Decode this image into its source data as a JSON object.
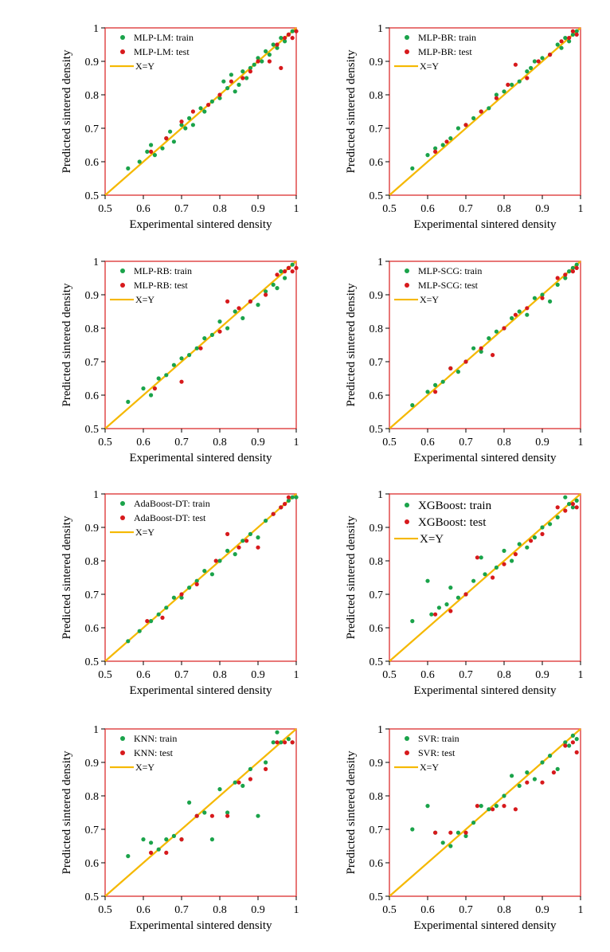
{
  "colors": {
    "train": "#1aa34a",
    "test": "#d7191c",
    "identity": "#f5b800",
    "frame": "#e04a4a"
  },
  "chart_data": [
    {
      "type": "scatter",
      "xlabel": "Experimental sintered density",
      "ylabel": "Predicted sintered density",
      "xlim": [
        0.5,
        1
      ],
      "ylim": [
        0.5,
        1
      ],
      "xticks": [
        "0.5",
        "0.6",
        "0.7",
        "0.8",
        "0.9",
        "1"
      ],
      "yticks": [
        "0.5",
        "0.6",
        "0.7",
        "0.8",
        "0.9",
        "1"
      ],
      "legend": [
        "MLP-LM: train",
        "MLP-LM: test",
        "X=Y"
      ],
      "legend_position": "top-left",
      "series": [
        {
          "name": "MLP-LM: train",
          "x": [
            0.56,
            0.59,
            0.61,
            0.62,
            0.63,
            0.65,
            0.66,
            0.67,
            0.68,
            0.7,
            0.71,
            0.72,
            0.73,
            0.75,
            0.76,
            0.78,
            0.8,
            0.81,
            0.82,
            0.83,
            0.84,
            0.85,
            0.86,
            0.87,
            0.88,
            0.89,
            0.9,
            0.91,
            0.92,
            0.93,
            0.94,
            0.95,
            0.96,
            0.97,
            0.98,
            0.99
          ],
          "y": [
            0.58,
            0.6,
            0.63,
            0.65,
            0.62,
            0.64,
            0.67,
            0.69,
            0.66,
            0.71,
            0.7,
            0.73,
            0.71,
            0.76,
            0.75,
            0.78,
            0.79,
            0.84,
            0.82,
            0.86,
            0.81,
            0.83,
            0.87,
            0.85,
            0.88,
            0.89,
            0.91,
            0.9,
            0.93,
            0.92,
            0.95,
            0.94,
            0.97,
            0.96,
            0.98,
            0.99
          ]
        },
        {
          "name": "MLP-LM: test",
          "x": [
            0.62,
            0.66,
            0.7,
            0.73,
            0.77,
            0.8,
            0.83,
            0.86,
            0.88,
            0.9,
            0.93,
            0.95,
            0.96,
            0.97,
            0.98,
            0.99,
            1.0
          ],
          "y": [
            0.63,
            0.67,
            0.72,
            0.75,
            0.77,
            0.8,
            0.84,
            0.85,
            0.87,
            0.9,
            0.9,
            0.95,
            0.88,
            0.97,
            0.98,
            0.97,
            0.99
          ]
        }
      ]
    },
    {
      "type": "scatter",
      "xlabel": "Experimental sintered density",
      "ylabel": "Predicted sintered density",
      "xlim": [
        0.5,
        1
      ],
      "ylim": [
        0.5,
        1
      ],
      "xticks": [
        "0.5",
        "0.6",
        "0.7",
        "0.8",
        "0.9",
        "1"
      ],
      "yticks": [
        "0.5",
        "0.6",
        "0.7",
        "0.8",
        "0.9",
        "1"
      ],
      "legend": [
        "MLP-BR: train",
        "MLP-BR: test",
        "X=Y"
      ],
      "legend_position": "top-left",
      "series": [
        {
          "name": "MLP-BR: train",
          "x": [
            0.56,
            0.6,
            0.62,
            0.64,
            0.66,
            0.68,
            0.7,
            0.72,
            0.74,
            0.76,
            0.78,
            0.8,
            0.82,
            0.84,
            0.86,
            0.87,
            0.88,
            0.9,
            0.92,
            0.94,
            0.95,
            0.96,
            0.97,
            0.98,
            0.99
          ],
          "y": [
            0.58,
            0.62,
            0.64,
            0.65,
            0.67,
            0.7,
            0.71,
            0.73,
            0.75,
            0.76,
            0.8,
            0.81,
            0.83,
            0.84,
            0.87,
            0.88,
            0.9,
            0.91,
            0.92,
            0.95,
            0.94,
            0.97,
            0.96,
            0.98,
            0.99
          ]
        },
        {
          "name": "MLP-BR: test",
          "x": [
            0.62,
            0.65,
            0.7,
            0.74,
            0.78,
            0.81,
            0.83,
            0.86,
            0.89,
            0.92,
            0.95,
            0.97,
            0.98,
            0.99
          ],
          "y": [
            0.63,
            0.66,
            0.71,
            0.75,
            0.79,
            0.83,
            0.89,
            0.85,
            0.9,
            0.92,
            0.96,
            0.97,
            0.99,
            0.98
          ]
        }
      ]
    },
    {
      "type": "scatter",
      "xlabel": "Experimental sintered density",
      "ylabel": "Predicted sintered density",
      "xlim": [
        0.5,
        1
      ],
      "ylim": [
        0.5,
        1
      ],
      "xticks": [
        "0.5",
        "0.6",
        "0.7",
        "0.8",
        "0.9",
        "1"
      ],
      "yticks": [
        "0.5",
        "0.6",
        "0.7",
        "0.8",
        "0.9",
        "1"
      ],
      "legend": [
        "MLP-RB: train",
        "MLP-RB: test",
        "X=Y"
      ],
      "legend_position": "top-left",
      "series": [
        {
          "name": "MLP-RB: train",
          "x": [
            0.56,
            0.6,
            0.62,
            0.64,
            0.66,
            0.68,
            0.7,
            0.72,
            0.74,
            0.76,
            0.78,
            0.8,
            0.82,
            0.84,
            0.86,
            0.88,
            0.9,
            0.92,
            0.94,
            0.95,
            0.96,
            0.97,
            0.98,
            0.99
          ],
          "y": [
            0.58,
            0.62,
            0.6,
            0.65,
            0.66,
            0.69,
            0.71,
            0.72,
            0.74,
            0.77,
            0.78,
            0.82,
            0.8,
            0.85,
            0.83,
            0.88,
            0.87,
            0.91,
            0.93,
            0.92,
            0.97,
            0.95,
            0.98,
            0.99
          ]
        },
        {
          "name": "MLP-RB: test",
          "x": [
            0.63,
            0.7,
            0.75,
            0.8,
            0.82,
            0.85,
            0.88,
            0.92,
            0.95,
            0.97,
            0.98,
            0.99,
            1.0
          ],
          "y": [
            0.62,
            0.64,
            0.74,
            0.79,
            0.88,
            0.86,
            0.88,
            0.9,
            0.96,
            0.97,
            0.98,
            0.97,
            0.98
          ]
        }
      ]
    },
    {
      "type": "scatter",
      "xlabel": "Experimental sintered density",
      "ylabel": "Predicted sintered density",
      "xlim": [
        0.5,
        1
      ],
      "ylim": [
        0.5,
        1
      ],
      "xticks": [
        "0.5",
        "0.6",
        "0.7",
        "0.8",
        "0.9",
        "1"
      ],
      "yticks": [
        "0.5",
        "0.6",
        "0.7",
        "0.8",
        "0.9",
        "1"
      ],
      "legend": [
        "MLP-SCG: train",
        "MLP-SCG: test",
        "X=Y"
      ],
      "legend_position": "top-left",
      "series": [
        {
          "name": "MLP-SCG: train",
          "x": [
            0.56,
            0.6,
            0.62,
            0.64,
            0.66,
            0.68,
            0.7,
            0.72,
            0.74,
            0.76,
            0.78,
            0.8,
            0.82,
            0.84,
            0.86,
            0.88,
            0.9,
            0.92,
            0.94,
            0.96,
            0.97,
            0.98,
            0.99
          ],
          "y": [
            0.57,
            0.61,
            0.63,
            0.64,
            0.68,
            0.67,
            0.7,
            0.74,
            0.73,
            0.77,
            0.79,
            0.8,
            0.83,
            0.85,
            0.84,
            0.89,
            0.9,
            0.88,
            0.93,
            0.95,
            0.97,
            0.98,
            0.99
          ]
        },
        {
          "name": "MLP-SCG: test",
          "x": [
            0.62,
            0.66,
            0.7,
            0.74,
            0.77,
            0.8,
            0.83,
            0.86,
            0.9,
            0.94,
            0.96,
            0.98,
            0.99
          ],
          "y": [
            0.61,
            0.68,
            0.7,
            0.74,
            0.72,
            0.8,
            0.84,
            0.86,
            0.89,
            0.95,
            0.96,
            0.97,
            0.98
          ]
        }
      ]
    },
    {
      "type": "scatter",
      "xlabel": "Experimental sintered density",
      "ylabel": "Predicted sintered density",
      "xlim": [
        0.5,
        1
      ],
      "ylim": [
        0.5,
        1
      ],
      "xticks": [
        "0.5",
        "0.6",
        "0.7",
        "0.8",
        "0.9",
        "1"
      ],
      "yticks": [
        "0.5",
        "0.6",
        "0.7",
        "0.8",
        "0.9",
        "1"
      ],
      "legend": [
        "AdaBoost-DT: train",
        "AdaBoost-DT: test",
        "X=Y"
      ],
      "legend_position": "top-left",
      "series": [
        {
          "name": "AdaBoost-DT: train",
          "x": [
            0.56,
            0.59,
            0.62,
            0.64,
            0.66,
            0.68,
            0.7,
            0.72,
            0.74,
            0.76,
            0.78,
            0.8,
            0.82,
            0.84,
            0.86,
            0.88,
            0.9,
            0.92,
            0.94,
            0.96,
            0.98,
            0.99,
            1.0
          ],
          "y": [
            0.56,
            0.59,
            0.62,
            0.64,
            0.66,
            0.69,
            0.69,
            0.72,
            0.74,
            0.77,
            0.76,
            0.8,
            0.83,
            0.82,
            0.86,
            0.88,
            0.87,
            0.92,
            0.94,
            0.96,
            0.98,
            0.99,
            0.99
          ]
        },
        {
          "name": "AdaBoost-DT: test",
          "x": [
            0.61,
            0.65,
            0.7,
            0.74,
            0.79,
            0.82,
            0.85,
            0.87,
            0.9,
            0.94,
            0.96,
            0.97,
            0.98
          ],
          "y": [
            0.62,
            0.63,
            0.7,
            0.73,
            0.8,
            0.88,
            0.84,
            0.86,
            0.84,
            0.94,
            0.96,
            0.97,
            0.99
          ]
        }
      ]
    },
    {
      "type": "scatter",
      "xlabel": "Experimental sintered density",
      "ylabel": "Predicted sintered density",
      "xlim": [
        0.5,
        1
      ],
      "ylim": [
        0.5,
        1
      ],
      "xticks": [
        "0.5",
        "0.6",
        "0.7",
        "0.8",
        "0.9",
        "1"
      ],
      "yticks": [
        "0.5",
        "0.6",
        "0.7",
        "0.8",
        "0.9",
        "1"
      ],
      "legend": [
        "XGBoost: train",
        "XGBoost: test",
        "X=Y"
      ],
      "legend_position": "top-left",
      "series": [
        {
          "name": "XGBoost: train",
          "x": [
            0.56,
            0.6,
            0.61,
            0.63,
            0.65,
            0.66,
            0.68,
            0.7,
            0.72,
            0.74,
            0.75,
            0.78,
            0.8,
            0.82,
            0.84,
            0.86,
            0.88,
            0.9,
            0.92,
            0.94,
            0.96,
            0.97,
            0.98,
            0.99
          ],
          "y": [
            0.62,
            0.74,
            0.64,
            0.66,
            0.67,
            0.72,
            0.69,
            0.7,
            0.74,
            0.81,
            0.76,
            0.78,
            0.83,
            0.8,
            0.85,
            0.84,
            0.87,
            0.9,
            0.91,
            0.93,
            0.99,
            0.97,
            0.96,
            0.98
          ]
        },
        {
          "name": "XGBoost: test",
          "x": [
            0.62,
            0.66,
            0.7,
            0.73,
            0.77,
            0.8,
            0.83,
            0.87,
            0.9,
            0.94,
            0.96,
            0.98,
            0.99
          ],
          "y": [
            0.64,
            0.65,
            0.7,
            0.81,
            0.75,
            0.79,
            0.82,
            0.86,
            0.88,
            0.96,
            0.95,
            0.97,
            0.96
          ]
        }
      ]
    },
    {
      "type": "scatter",
      "xlabel": "Experimental sintered density",
      "ylabel": "Predicted sintered density",
      "xlim": [
        0.5,
        1
      ],
      "ylim": [
        0.5,
        1
      ],
      "xticks": [
        "0.5",
        "0.6",
        "0.7",
        "0.8",
        "0.9",
        "1"
      ],
      "yticks": [
        "0.5",
        "0.6",
        "0.7",
        "0.8",
        "0.9",
        "1"
      ],
      "legend": [
        "KNN: train",
        "KNN: test",
        "X=Y"
      ],
      "legend_position": "top-left",
      "series": [
        {
          "name": "KNN: train",
          "x": [
            0.56,
            0.6,
            0.62,
            0.64,
            0.66,
            0.68,
            0.7,
            0.72,
            0.74,
            0.76,
            0.78,
            0.8,
            0.82,
            0.84,
            0.86,
            0.88,
            0.9,
            0.92,
            0.94,
            0.95,
            0.96,
            0.98,
            0.99
          ],
          "y": [
            0.62,
            0.67,
            0.66,
            0.64,
            0.67,
            0.68,
            0.67,
            0.78,
            0.74,
            0.75,
            0.67,
            0.82,
            0.75,
            0.84,
            0.83,
            0.88,
            0.74,
            0.9,
            0.96,
            0.99,
            0.96,
            0.97,
            0.96
          ]
        },
        {
          "name": "KNN: test",
          "x": [
            0.62,
            0.66,
            0.7,
            0.74,
            0.78,
            0.82,
            0.85,
            0.88,
            0.92,
            0.95,
            0.97,
            0.99
          ],
          "y": [
            0.63,
            0.63,
            0.67,
            0.74,
            0.74,
            0.74,
            0.84,
            0.85,
            0.88,
            0.96,
            0.96,
            0.96
          ]
        }
      ]
    },
    {
      "type": "scatter",
      "xlabel": "Experimental sintered density",
      "ylabel": "Predicted sintered density",
      "xlim": [
        0.5,
        1
      ],
      "ylim": [
        0.5,
        1
      ],
      "xticks": [
        "0.5",
        "0.6",
        "0.7",
        "0.8",
        "0.9",
        "1"
      ],
      "yticks": [
        "0.5",
        "0.6",
        "0.7",
        "0.8",
        "0.9",
        "1"
      ],
      "legend": [
        "SVR: train",
        "SVR: test",
        "X=Y"
      ],
      "legend_position": "top-left",
      "series": [
        {
          "name": "SVR: train",
          "x": [
            0.56,
            0.6,
            0.62,
            0.64,
            0.66,
            0.68,
            0.7,
            0.72,
            0.74,
            0.76,
            0.78,
            0.8,
            0.82,
            0.84,
            0.86,
            0.88,
            0.9,
            0.92,
            0.94,
            0.96,
            0.97,
            0.98,
            0.99
          ],
          "y": [
            0.7,
            0.77,
            0.69,
            0.66,
            0.65,
            0.69,
            0.68,
            0.72,
            0.77,
            0.76,
            0.77,
            0.8,
            0.86,
            0.83,
            0.87,
            0.85,
            0.9,
            0.92,
            0.88,
            0.96,
            0.95,
            0.98,
            0.97
          ]
        },
        {
          "name": "SVR: test",
          "x": [
            0.62,
            0.66,
            0.7,
            0.73,
            0.77,
            0.8,
            0.83,
            0.86,
            0.9,
            0.93,
            0.96,
            0.98,
            0.99
          ],
          "y": [
            0.69,
            0.69,
            0.69,
            0.77,
            0.76,
            0.77,
            0.76,
            0.84,
            0.84,
            0.87,
            0.95,
            0.96,
            0.93
          ]
        }
      ]
    }
  ]
}
